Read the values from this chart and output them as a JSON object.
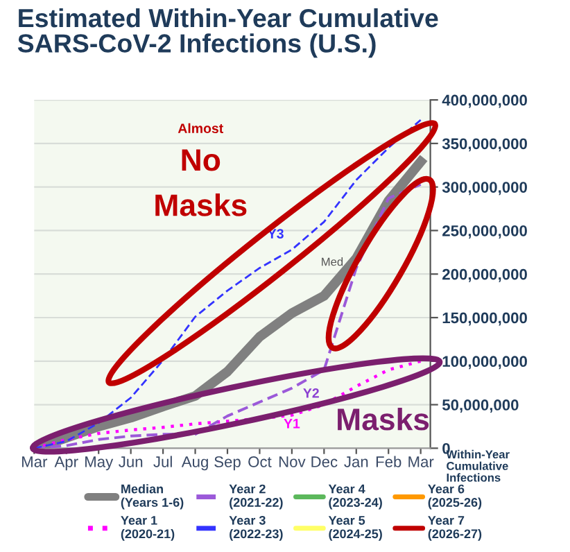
{
  "chart_data": {
    "type": "line",
    "title": "Estimated Within-Year Cumulative\nSARS-CoV-2 Infections (U.S.)",
    "ylabel": "Within-Year\nCumulative\nInfections",
    "categories": [
      "Mar",
      "Apr",
      "May",
      "Jun",
      "Jul",
      "Aug",
      "Sep",
      "Oct",
      "Nov",
      "Dec",
      "Jan",
      "Feb",
      "Mar"
    ],
    "series": [
      {
        "name": "Median\n(Years 1-6)",
        "color": "#808080",
        "line_style": "solid",
        "values": [
          0,
          12000000,
          25000000,
          35000000,
          48000000,
          60000000,
          88000000,
          128000000,
          155000000,
          175000000,
          218000000,
          284000000,
          329000000
        ]
      },
      {
        "name": "Year 1\n(2020-21)",
        "color": "#ff00ff",
        "line_style": "dotted",
        "values": [
          0,
          10000000,
          17000000,
          21000000,
          24000000,
          28000000,
          31000000,
          34000000,
          38000000,
          50000000,
          71000000,
          90000000,
          100000000
        ]
      },
      {
        "name": "Year 2\n(2021-22)",
        "color": "#9b59d9",
        "line_style": "dashed",
        "values": [
          0,
          3000000,
          10000000,
          14000000,
          16000000,
          16000000,
          37000000,
          53000000,
          69000000,
          90000000,
          207000000,
          287000000,
          303000000
        ]
      },
      {
        "name": "Year 3\n(2022-23)",
        "color": "#3333ff",
        "line_style": "dashed",
        "values": [
          0,
          8000000,
          29000000,
          58000000,
          101000000,
          151000000,
          181000000,
          207000000,
          228000000,
          260000000,
          308000000,
          345000000,
          377000000
        ]
      },
      {
        "name": "Year 4\n(2023-24)",
        "color": "#5cb85c",
        "line_style": "solid",
        "values": [
          null,
          null,
          null,
          null,
          null,
          null,
          null,
          null,
          null,
          null,
          null,
          null,
          null
        ]
      },
      {
        "name": "Year 5\n(2024-25)",
        "color": "#ffff66",
        "line_style": "solid",
        "values": [
          null,
          null,
          null,
          null,
          null,
          null,
          null,
          null,
          null,
          null,
          null,
          null,
          null
        ]
      },
      {
        "name": "Year 6\n(2025-26)",
        "color": "#ff9900",
        "line_style": "solid",
        "values": [
          null,
          null,
          null,
          null,
          null,
          null,
          null,
          null,
          null,
          null,
          null,
          null,
          null
        ]
      },
      {
        "name": "Year 7\n(2026-27)",
        "color": "#c00000",
        "line_style": "solid",
        "values": [
          null,
          null,
          null,
          null,
          null,
          null,
          null,
          null,
          null,
          null,
          null,
          null,
          null
        ]
      }
    ],
    "ylim": [
      0,
      400000000
    ],
    "yticks": [
      {
        "value": 0,
        "label": "0"
      },
      {
        "value": 50000000,
        "label": "50,000,000"
      },
      {
        "value": 100000000,
        "label": "100,000,000"
      },
      {
        "value": 150000000,
        "label": "150,000,000"
      },
      {
        "value": 200000000,
        "label": "200,000,000"
      },
      {
        "value": 250000000,
        "label": "250,000,000"
      },
      {
        "value": 300000000,
        "label": "300,000,000"
      },
      {
        "value": 350000000,
        "label": "350,000,000"
      },
      {
        "value": 400000000,
        "label": "400,000,000"
      }
    ],
    "annotations": [
      {
        "text": "Y3",
        "x": "Nov",
        "y": 232000000
      },
      {
        "text": "Med",
        "x": "Dec",
        "y": 193000000
      },
      {
        "text": "Y2",
        "x": "Nov",
        "y": 70000000
      },
      {
        "text": "Y1",
        "x": "Nov",
        "y": 45000000
      },
      "Almost",
      "No",
      "Masks",
      "Masks"
    ],
    "grid": "y",
    "legend": "bottom",
    "marker": "none"
  }
}
